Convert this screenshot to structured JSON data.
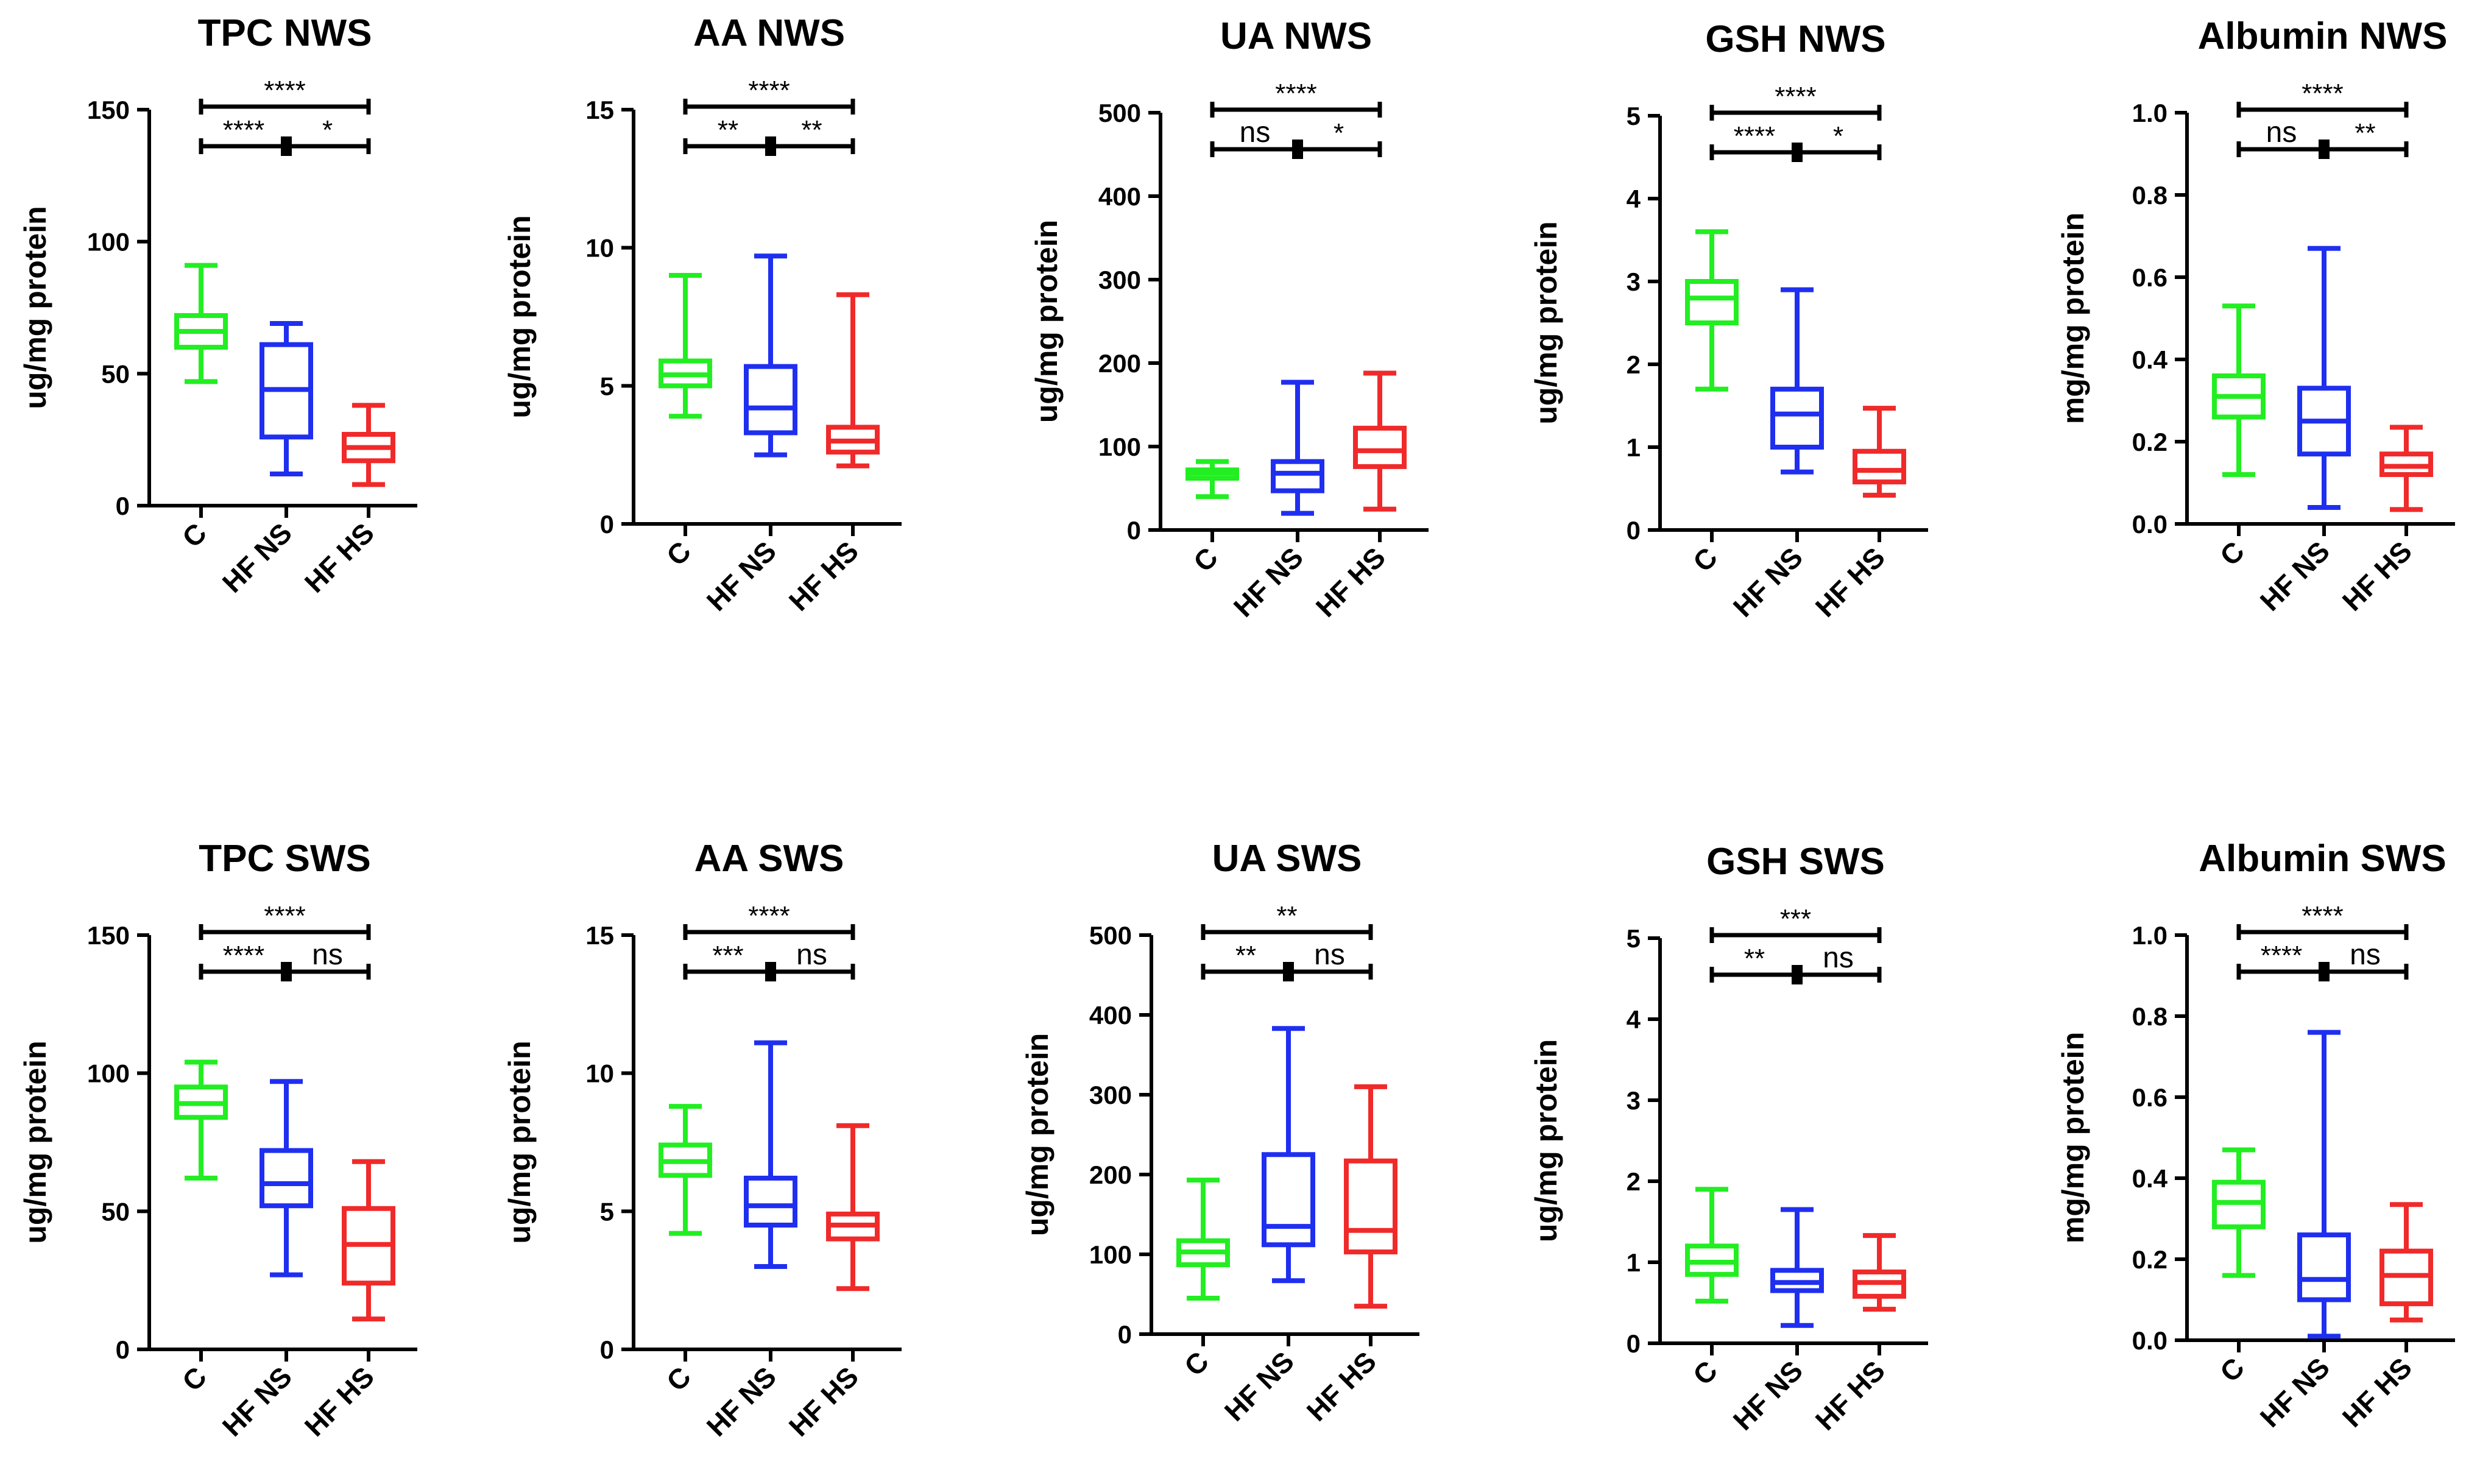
{
  "chart_data": [
    {
      "type": "box",
      "title": "TPC NWS",
      "ylabel": "ug/mg protein",
      "ylim": [
        0,
        150
      ],
      "yticks": [
        "0",
        "50",
        "100",
        "150"
      ],
      "yticks_values": [
        0,
        50,
        100,
        150
      ],
      "categories": [
        "C",
        "HF NS",
        "HF HS"
      ],
      "colors": [
        "#22ee22",
        "#1f2ff0",
        "#f02a2a"
      ],
      "series": [
        {
          "name": "C",
          "min": 47,
          "q1": 60,
          "median": 66,
          "q3": 72,
          "max": 91
        },
        {
          "name": "HF NS",
          "min": 12,
          "q1": 26,
          "median": 44,
          "q3": 61,
          "max": 69
        },
        {
          "name": "HF HS",
          "min": 8,
          "q1": 17,
          "median": 22,
          "q3": 27,
          "max": 38
        }
      ],
      "significance": {
        "top": "****",
        "left": "****",
        "right": "*"
      }
    },
    {
      "type": "box",
      "title": "AA NWS",
      "ylabel": "ug/mg protein",
      "ylim": [
        0,
        15
      ],
      "yticks": [
        "0",
        "5",
        "10",
        "15"
      ],
      "yticks_values": [
        0,
        5,
        10,
        15
      ],
      "categories": [
        "C",
        "HF NS",
        "HF HS"
      ],
      "colors": [
        "#22ee22",
        "#1f2ff0",
        "#f02a2a"
      ],
      "series": [
        {
          "name": "C",
          "min": 3.9,
          "q1": 5.0,
          "median": 5.4,
          "q3": 5.9,
          "max": 9.0
        },
        {
          "name": "HF NS",
          "min": 2.5,
          "q1": 3.3,
          "median": 4.2,
          "q3": 5.7,
          "max": 9.7
        },
        {
          "name": "HF HS",
          "min": 2.1,
          "q1": 2.6,
          "median": 3.0,
          "q3": 3.5,
          "max": 8.3
        }
      ],
      "significance": {
        "top": "****",
        "left": "**",
        "right": "**"
      }
    },
    {
      "type": "box",
      "title": "UA NWS",
      "ylabel": "ug/mg protein",
      "ylim": [
        0,
        500
      ],
      "yticks": [
        "0",
        "100",
        "200",
        "300",
        "400",
        "500"
      ],
      "yticks_values": [
        0,
        100,
        200,
        300,
        400,
        500
      ],
      "categories": [
        "C",
        "HF NS",
        "HF HS"
      ],
      "colors": [
        "#22ee22",
        "#1f2ff0",
        "#f02a2a"
      ],
      "series": [
        {
          "name": "C",
          "min": 40,
          "q1": 62,
          "median": 68,
          "q3": 72,
          "max": 82
        },
        {
          "name": "HF NS",
          "min": 20,
          "q1": 47,
          "median": 68,
          "q3": 82,
          "max": 177
        },
        {
          "name": "HF HS",
          "min": 25,
          "q1": 76,
          "median": 95,
          "q3": 122,
          "max": 188
        }
      ],
      "significance": {
        "top": "****",
        "left": "ns",
        "right": "*"
      }
    },
    {
      "type": "box",
      "title": "GSH NWS",
      "ylabel": "ug/mg protein",
      "ylim": [
        0,
        5
      ],
      "yticks": [
        "0",
        "1",
        "2",
        "3",
        "4",
        "5"
      ],
      "yticks_values": [
        0,
        1,
        2,
        3,
        4,
        5
      ],
      "categories": [
        "C",
        "HF NS",
        "HF HS"
      ],
      "colors": [
        "#22ee22",
        "#1f2ff0",
        "#f02a2a"
      ],
      "series": [
        {
          "name": "C",
          "min": 1.7,
          "q1": 2.5,
          "median": 2.8,
          "q3": 3.0,
          "max": 3.6
        },
        {
          "name": "HF NS",
          "min": 0.7,
          "q1": 1.0,
          "median": 1.4,
          "q3": 1.7,
          "max": 2.9
        },
        {
          "name": "HF HS",
          "min": 0.42,
          "q1": 0.58,
          "median": 0.72,
          "q3": 0.95,
          "max": 1.47
        }
      ],
      "significance": {
        "top": "****",
        "left": "****",
        "right": "*"
      }
    },
    {
      "type": "box",
      "title": "Albumin NWS",
      "ylabel": "mg/mg protein",
      "ylim": [
        0,
        1.0
      ],
      "yticks": [
        "0.0",
        "0.2",
        "0.4",
        "0.6",
        "0.8",
        "1.0"
      ],
      "yticks_values": [
        0,
        0.2,
        0.4,
        0.6,
        0.8,
        1.0
      ],
      "categories": [
        "C",
        "HF NS",
        "HF HS"
      ],
      "colors": [
        "#22ee22",
        "#1f2ff0",
        "#f02a2a"
      ],
      "series": [
        {
          "name": "C",
          "min": 0.12,
          "q1": 0.26,
          "median": 0.31,
          "q3": 0.36,
          "max": 0.53
        },
        {
          "name": "HF NS",
          "min": 0.04,
          "q1": 0.17,
          "median": 0.25,
          "q3": 0.33,
          "max": 0.67
        },
        {
          "name": "HF HS",
          "min": 0.035,
          "q1": 0.12,
          "median": 0.14,
          "q3": 0.17,
          "max": 0.235
        }
      ],
      "significance": {
        "top": "****",
        "left": "ns",
        "right": "**"
      }
    },
    {
      "type": "box",
      "title": "TPC SWS",
      "ylabel": "ug/mg protein",
      "ylim": [
        0,
        150
      ],
      "yticks": [
        "0",
        "50",
        "100",
        "150"
      ],
      "yticks_values": [
        0,
        50,
        100,
        150
      ],
      "categories": [
        "C",
        "HF NS",
        "HF HS"
      ],
      "colors": [
        "#22ee22",
        "#1f2ff0",
        "#f02a2a"
      ],
      "series": [
        {
          "name": "C",
          "min": 62,
          "q1": 84,
          "median": 89,
          "q3": 95,
          "max": 104
        },
        {
          "name": "HF NS",
          "min": 27,
          "q1": 52,
          "median": 60,
          "q3": 72,
          "max": 97
        },
        {
          "name": "HF HS",
          "min": 11,
          "q1": 24,
          "median": 38,
          "q3": 51,
          "max": 68
        }
      ],
      "significance": {
        "top": "****",
        "left": "****",
        "right": "ns"
      }
    },
    {
      "type": "box",
      "title": "AA SWS",
      "ylabel": "ug/mg protein",
      "ylim": [
        0,
        15
      ],
      "yticks": [
        "0",
        "5",
        "10",
        "15"
      ],
      "yticks_values": [
        0,
        5,
        10,
        15
      ],
      "categories": [
        "C",
        "HF NS",
        "HF HS"
      ],
      "colors": [
        "#22ee22",
        "#1f2ff0",
        "#f02a2a"
      ],
      "series": [
        {
          "name": "C",
          "min": 4.2,
          "q1": 6.3,
          "median": 6.8,
          "q3": 7.4,
          "max": 8.8
        },
        {
          "name": "HF NS",
          "min": 3.0,
          "q1": 4.5,
          "median": 5.2,
          "q3": 6.2,
          "max": 11.1
        },
        {
          "name": "HF HS",
          "min": 2.2,
          "q1": 4.0,
          "median": 4.5,
          "q3": 4.9,
          "max": 8.1
        }
      ],
      "significance": {
        "top": "****",
        "left": "***",
        "right": "ns"
      }
    },
    {
      "type": "box",
      "title": "UA SWS",
      "ylabel": "ug/mg protein",
      "ylim": [
        0,
        500
      ],
      "yticks": [
        "0",
        "100",
        "200",
        "300",
        "400",
        "500"
      ],
      "yticks_values": [
        0,
        100,
        200,
        300,
        400,
        500
      ],
      "categories": [
        "C",
        "HF NS",
        "HF HS"
      ],
      "colors": [
        "#22ee22",
        "#1f2ff0",
        "#f02a2a"
      ],
      "series": [
        {
          "name": "C",
          "min": 45,
          "q1": 87,
          "median": 103,
          "q3": 117,
          "max": 193
        },
        {
          "name": "HF NS",
          "min": 67,
          "q1": 112,
          "median": 135,
          "q3": 225,
          "max": 383
        },
        {
          "name": "HF HS",
          "min": 35,
          "q1": 103,
          "median": 130,
          "q3": 217,
          "max": 310
        }
      ],
      "significance": {
        "top": "**",
        "left": "**",
        "right": "ns"
      }
    },
    {
      "type": "box",
      "title": "GSH SWS",
      "ylabel": "ug/mg protein",
      "ylim": [
        0,
        5
      ],
      "yticks": [
        "0",
        "1",
        "2",
        "3",
        "4",
        "5"
      ],
      "yticks_values": [
        0,
        1,
        2,
        3,
        4,
        5
      ],
      "categories": [
        "C",
        "HF NS",
        "HF HS"
      ],
      "colors": [
        "#22ee22",
        "#1f2ff0",
        "#f02a2a"
      ],
      "series": [
        {
          "name": "C",
          "min": 0.52,
          "q1": 0.85,
          "median": 1.0,
          "q3": 1.2,
          "max": 1.9
        },
        {
          "name": "HF NS",
          "min": 0.22,
          "q1": 0.65,
          "median": 0.75,
          "q3": 0.9,
          "max": 1.65
        },
        {
          "name": "HF HS",
          "min": 0.42,
          "q1": 0.58,
          "median": 0.75,
          "q3": 0.88,
          "max": 1.33
        }
      ],
      "significance": {
        "top": "***",
        "left": "**",
        "right": "ns"
      }
    },
    {
      "type": "box",
      "title": "Albumin SWS",
      "ylabel": "mg/mg protein",
      "ylim": [
        0,
        1.0
      ],
      "yticks": [
        "0.0",
        "0.2",
        "0.4",
        "0.6",
        "0.8",
        "1.0"
      ],
      "yticks_values": [
        0,
        0.2,
        0.4,
        0.6,
        0.8,
        1.0
      ],
      "categories": [
        "C",
        "HF NS",
        "HF HS"
      ],
      "colors": [
        "#22ee22",
        "#1f2ff0",
        "#f02a2a"
      ],
      "series": [
        {
          "name": "C",
          "min": 0.16,
          "q1": 0.28,
          "median": 0.34,
          "q3": 0.39,
          "max": 0.47
        },
        {
          "name": "HF NS",
          "min": 0.01,
          "q1": 0.1,
          "median": 0.15,
          "q3": 0.26,
          "max": 0.76
        },
        {
          "name": "HF HS",
          "min": 0.05,
          "q1": 0.09,
          "median": 0.16,
          "q3": 0.22,
          "max": 0.335
        }
      ],
      "significance": {
        "top": "****",
        "left": "****",
        "right": "ns"
      }
    }
  ]
}
